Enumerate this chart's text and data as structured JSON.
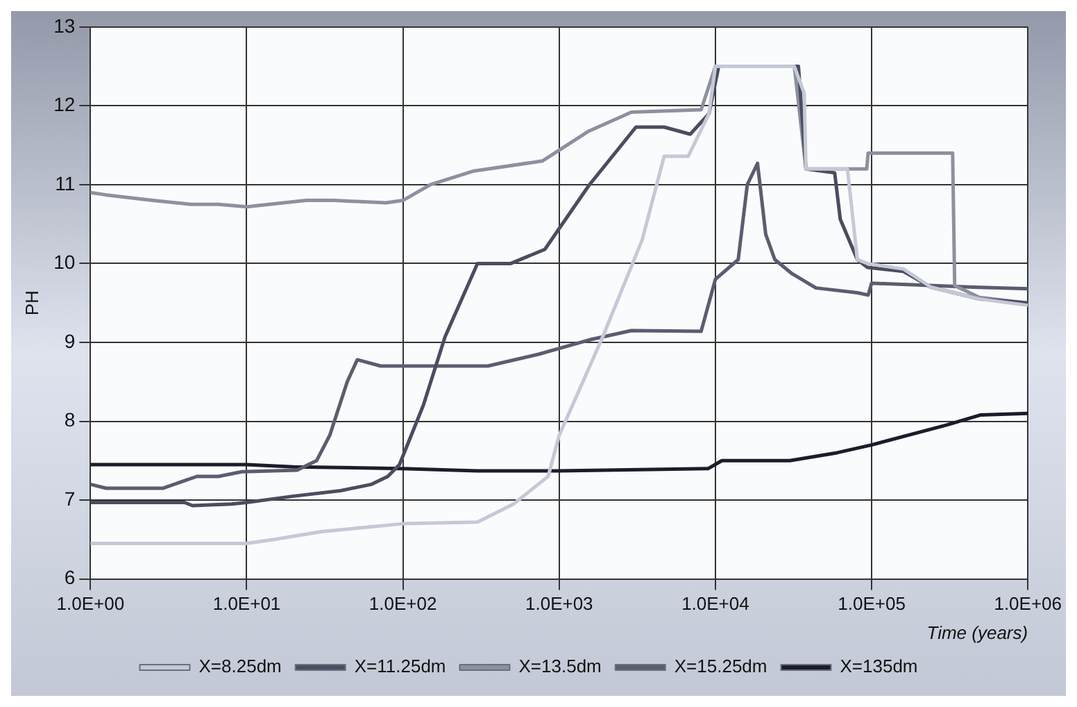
{
  "chart_data": {
    "type": "line",
    "xlabel": "Time (years)",
    "ylabel": "PH",
    "log": "x",
    "xlim": [
      1,
      1000000
    ],
    "ylim": [
      6,
      13
    ],
    "xticks": [
      {
        "value": 1,
        "label": "1.0E+00"
      },
      {
        "value": 10,
        "label": "1.0E+01"
      },
      {
        "value": 100,
        "label": "1.0E+02"
      },
      {
        "value": 1000,
        "label": "1.0E+03"
      },
      {
        "value": 10000,
        "label": "1.0E+04"
      },
      {
        "value": 100000,
        "label": "1.0E+05"
      },
      {
        "value": 1000000,
        "label": "1.0E+06"
      }
    ],
    "yticks": [
      6,
      7,
      8,
      9,
      10,
      11,
      12,
      13
    ],
    "grid": true,
    "legend": "bottom",
    "marker": "none",
    "line_style": "solid",
    "series": [
      {
        "name": "X=8.25dm",
        "color": "#c4c9d6",
        "x": [
          1,
          10,
          15,
          30,
          100,
          300,
          510,
          850,
          1000,
          1900,
          3400,
          4700,
          6700,
          9100,
          10000,
          32000,
          37000,
          38000,
          70000,
          81000,
          94000,
          160000,
          240000,
          490000,
          1000000
        ],
        "values": [
          6.45,
          6.45,
          6.5,
          6.6,
          6.7,
          6.72,
          6.95,
          7.3,
          7.82,
          9.07,
          10.3,
          11.36,
          11.36,
          11.9,
          12.5,
          12.5,
          12.16,
          11.2,
          11.2,
          10.05,
          10,
          9.93,
          9.7,
          9.55,
          9.47
        ]
      },
      {
        "name": "X=11.25dm",
        "color": "#4a4d60",
        "x": [
          1,
          4,
          4.5,
          8,
          10,
          20,
          40,
          63,
          80,
          95,
          135,
          186,
          300,
          490,
          810,
          1550,
          3100,
          4700,
          6900,
          9100,
          10500,
          34000,
          38000,
          58000,
          63000,
          81000,
          94000,
          160000,
          240000,
          490000,
          1000000
        ],
        "values": [
          6.97,
          6.97,
          6.93,
          6.95,
          6.97,
          7.05,
          7.12,
          7.2,
          7.3,
          7.45,
          8.2,
          9.07,
          10,
          10,
          10.18,
          10.99,
          11.73,
          11.73,
          11.64,
          11.9,
          12.5,
          12.5,
          11.2,
          11.15,
          10.56,
          10.05,
          9.95,
          9.9,
          9.7,
          9.55,
          9.5
        ]
      },
      {
        "name": "X=13.5dm",
        "color": "#8d909f",
        "x": [
          1,
          1.26,
          2.5,
          4.4,
          6.6,
          10,
          24,
          36,
          78,
          100,
          150,
          280,
          780,
          1550,
          2900,
          8100,
          10000,
          32000,
          38000,
          93000,
          95000,
          330000,
          340000,
          490000,
          1000000
        ],
        "values": [
          10.9,
          10.87,
          10.8,
          10.75,
          10.75,
          10.72,
          10.8,
          10.8,
          10.77,
          10.8,
          11,
          11.17,
          11.3,
          11.68,
          11.92,
          11.95,
          12.5,
          12.5,
          11.2,
          11.2,
          11.4,
          11.4,
          9.72,
          9.57,
          9.5
        ]
      },
      {
        "name": "X=15.25dm",
        "color": "#5a5d70",
        "x": [
          1,
          1.26,
          2.9,
          4.8,
          6.6,
          9.3,
          21,
          28,
          34,
          44,
          51,
          72,
          350,
          740,
          1550,
          2900,
          8100,
          10000,
          14000,
          16000,
          18600,
          21000,
          24000,
          31000,
          44000,
          81000,
          95000,
          100000,
          450000,
          1000000
        ],
        "values": [
          7.2,
          7.15,
          7.15,
          7.3,
          7.3,
          7.36,
          7.38,
          7.5,
          7.82,
          8.5,
          8.78,
          8.7,
          8.7,
          8.85,
          9.03,
          9.15,
          9.14,
          9.8,
          10.05,
          11,
          11.27,
          10.37,
          10.05,
          9.87,
          9.69,
          9.63,
          9.6,
          9.75,
          9.7,
          9.68
        ]
      },
      {
        "name": "X=135dm",
        "color": "#1c1c2a",
        "x": [
          1,
          10,
          20,
          100,
          300,
          1000,
          9000,
          11000,
          30000,
          60000,
          100000,
          300000,
          500000,
          1000000
        ],
        "values": [
          7.45,
          7.45,
          7.42,
          7.4,
          7.37,
          7.37,
          7.4,
          7.5,
          7.5,
          7.6,
          7.7,
          7.95,
          8.08,
          8.1
        ]
      }
    ]
  }
}
